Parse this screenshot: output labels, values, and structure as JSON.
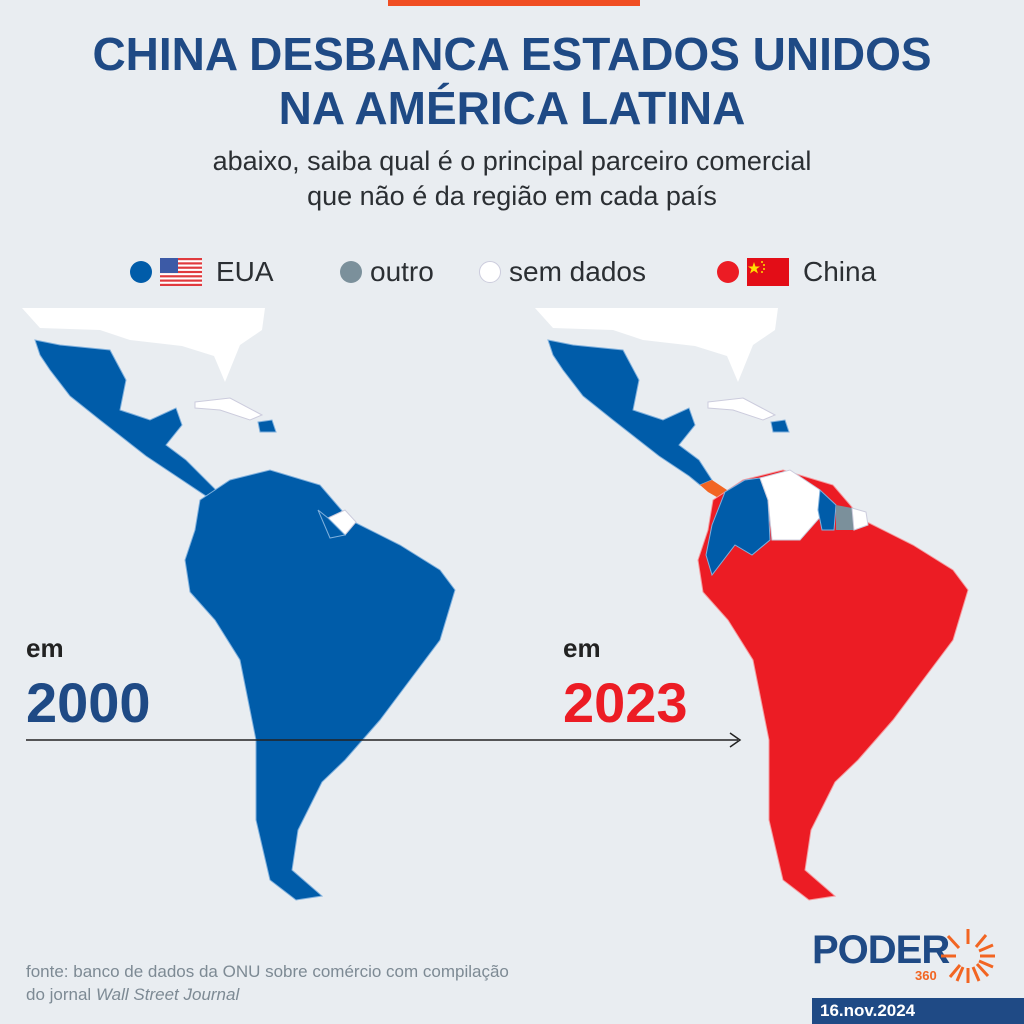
{
  "title": [
    "CHINA DESBANCA ESTADOS UNIDOS",
    "NA AMÉRICA LATINA"
  ],
  "subtitle": [
    "abaixo, saiba qual é o principal parceiro comercial",
    "que não é da região em cada país"
  ],
  "legend": [
    {
      "label": "EUA",
      "color": "#005ca9",
      "flag": "us-flag-icon"
    },
    {
      "label": "outro",
      "color": "#7b909b"
    },
    {
      "label": "sem dados",
      "color": "#ffffff"
    },
    {
      "label": "China",
      "color": "#ec1c24",
      "flag": "china-flag-icon"
    }
  ],
  "maps": [
    {
      "prefix": "em",
      "year": "2000",
      "year_color": "#1f4a85"
    },
    {
      "prefix": "em",
      "year": "2023",
      "year_color": "#ec1c24"
    }
  ],
  "colors": {
    "eua": "#005ca9",
    "china": "#ec1c24",
    "outro": "#7b909b",
    "sem_dados": "#ffffff",
    "panama": "#f26522",
    "background": "#e9edf1"
  },
  "source": {
    "text": "fonte: banco de dados da ONU sobre comércio com compilação",
    "text2": "do jornal ",
    "italic": "Wall Street Journal"
  },
  "brand": {
    "name": "PODER",
    "suffix": "360"
  },
  "date": "16.nov.2024"
}
